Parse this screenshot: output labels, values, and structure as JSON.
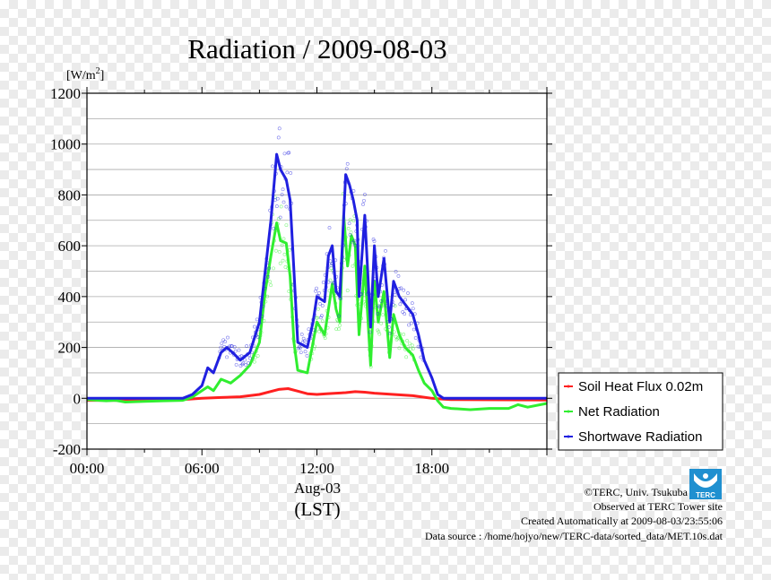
{
  "chart_data": {
    "type": "line",
    "title": "Radiation / 2009-08-03",
    "ylabel_unit": "[W/m",
    "ylabel_unit_sup": "2",
    "ylabel_unit_close": "]",
    "ylim": [
      -200,
      1200
    ],
    "yticks": [
      -200,
      0,
      200,
      400,
      600,
      800,
      1000,
      1200
    ],
    "ytick_labels": [
      "-200",
      "0",
      "200",
      "400",
      "600",
      "800",
      "1000",
      "1200"
    ],
    "xlim": [
      0,
      24
    ],
    "xticks": [
      0,
      6,
      12,
      18
    ],
    "xtick_labels": [
      "00:00",
      "06:00",
      "12:00",
      "18:00"
    ],
    "xdate": "Aug-03",
    "xlabel": "(LST)",
    "grid": true,
    "legend_position": "right-bottom",
    "series": [
      {
        "name": "Soil Heat Flux 0.02m",
        "color": "#ff2020",
        "points": [
          [
            0,
            -8
          ],
          [
            3,
            -8
          ],
          [
            5,
            -5
          ],
          [
            6,
            0
          ],
          [
            7,
            3
          ],
          [
            8,
            6
          ],
          [
            9,
            15
          ],
          [
            10,
            35
          ],
          [
            10.5,
            38
          ],
          [
            11,
            28
          ],
          [
            11.5,
            18
          ],
          [
            12,
            15
          ],
          [
            12.5,
            18
          ],
          [
            13,
            20
          ],
          [
            13.5,
            22
          ],
          [
            14,
            26
          ],
          [
            14.5,
            24
          ],
          [
            15,
            20
          ],
          [
            16,
            15
          ],
          [
            17,
            10
          ],
          [
            17.5,
            5
          ],
          [
            18,
            0
          ],
          [
            18.5,
            -3
          ],
          [
            19,
            -5
          ],
          [
            24,
            -7
          ]
        ]
      },
      {
        "name": "Net Radiation",
        "color": "#30ee30",
        "points": [
          [
            0,
            -5
          ],
          [
            1,
            -10
          ],
          [
            1.5,
            -8
          ],
          [
            2,
            -15
          ],
          [
            3,
            -12
          ],
          [
            4,
            -10
          ],
          [
            5,
            -8
          ],
          [
            5.5,
            5
          ],
          [
            6,
            30
          ],
          [
            6.3,
            45
          ],
          [
            6.6,
            30
          ],
          [
            7,
            75
          ],
          [
            7.5,
            60
          ],
          [
            8,
            90
          ],
          [
            8.5,
            130
          ],
          [
            9,
            220
          ],
          [
            9.3,
            420
          ],
          [
            9.6,
            560
          ],
          [
            9.9,
            690
          ],
          [
            10.1,
            620
          ],
          [
            10.4,
            610
          ],
          [
            10.6,
            480
          ],
          [
            10.8,
            220
          ],
          [
            11,
            110
          ],
          [
            11.5,
            100
          ],
          [
            12,
            300
          ],
          [
            12.4,
            250
          ],
          [
            12.8,
            450
          ],
          [
            13,
            350
          ],
          [
            13.2,
            300
          ],
          [
            13.4,
            720
          ],
          [
            13.6,
            520
          ],
          [
            13.8,
            640
          ],
          [
            14,
            600
          ],
          [
            14.2,
            250
          ],
          [
            14.5,
            520
          ],
          [
            14.8,
            130
          ],
          [
            15,
            460
          ],
          [
            15.2,
            300
          ],
          [
            15.5,
            420
          ],
          [
            15.8,
            160
          ],
          [
            16,
            330
          ],
          [
            16.3,
            250
          ],
          [
            16.6,
            200
          ],
          [
            17,
            170
          ],
          [
            17.3,
            110
          ],
          [
            17.6,
            60
          ],
          [
            18,
            30
          ],
          [
            18.3,
            -10
          ],
          [
            18.6,
            -35
          ],
          [
            19,
            -40
          ],
          [
            20,
            -45
          ],
          [
            21,
            -40
          ],
          [
            22,
            -40
          ],
          [
            22.5,
            -25
          ],
          [
            23,
            -35
          ],
          [
            24,
            -20
          ]
        ]
      },
      {
        "name": "Shortwave Radiation",
        "color": "#2020e0",
        "points": [
          [
            0,
            0
          ],
          [
            5,
            0
          ],
          [
            5.5,
            15
          ],
          [
            6,
            50
          ],
          [
            6.3,
            120
          ],
          [
            6.6,
            100
          ],
          [
            7,
            180
          ],
          [
            7.3,
            200
          ],
          [
            7.6,
            180
          ],
          [
            8,
            150
          ],
          [
            8.5,
            180
          ],
          [
            9,
            300
          ],
          [
            9.3,
            500
          ],
          [
            9.6,
            700
          ],
          [
            9.9,
            960
          ],
          [
            10.1,
            900
          ],
          [
            10.4,
            860
          ],
          [
            10.6,
            780
          ],
          [
            10.8,
            500
          ],
          [
            11,
            220
          ],
          [
            11.5,
            200
          ],
          [
            11.8,
            300
          ],
          [
            12,
            400
          ],
          [
            12.4,
            380
          ],
          [
            12.6,
            560
          ],
          [
            12.8,
            600
          ],
          [
            13,
            420
          ],
          [
            13.2,
            400
          ],
          [
            13.5,
            880
          ],
          [
            13.7,
            840
          ],
          [
            13.9,
            780
          ],
          [
            14.1,
            700
          ],
          [
            14.2,
            400
          ],
          [
            14.5,
            720
          ],
          [
            14.8,
            280
          ],
          [
            15,
            600
          ],
          [
            15.2,
            400
          ],
          [
            15.5,
            550
          ],
          [
            15.8,
            300
          ],
          [
            16,
            460
          ],
          [
            16.3,
            400
          ],
          [
            16.6,
            370
          ],
          [
            17,
            330
          ],
          [
            17.3,
            250
          ],
          [
            17.6,
            150
          ],
          [
            18,
            80
          ],
          [
            18.3,
            15
          ],
          [
            18.6,
            0
          ],
          [
            24,
            0
          ]
        ]
      }
    ],
    "sample_points_note": ""
  },
  "footer": {
    "copyright": "©TERC, Univ. Tsukuba",
    "observed": "Observed at TERC Tower site",
    "created": "Created Automatically at 2009-08-03/23:55:06",
    "source": "Data source : /home/hojyo/new/TERC-data/sorted_data/MET.10s.dat"
  },
  "logo": {
    "text": "TERC",
    "color": "#2090d0"
  }
}
